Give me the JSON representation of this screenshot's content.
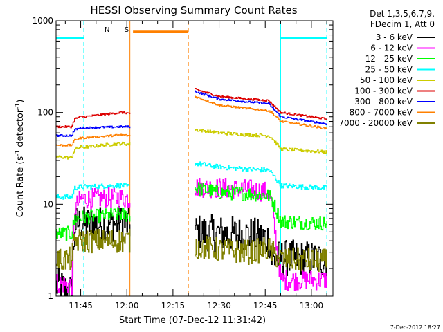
{
  "chart_data": {
    "type": "line",
    "title": "HESSI Observing Summary Count Rates",
    "xlabel": "Start Time (07-Dec-12 11:31:42)",
    "ylabel_prefix": "Count Rate (s",
    "ylabel_sup1": "-1",
    "ylabel_mid": " detector",
    "ylabel_sup2": "-1",
    "ylabel_suffix": ")",
    "yscale": "log",
    "ylim": [
      1,
      1000
    ],
    "xlim": [
      "11:37",
      "13:07"
    ],
    "y_ticks": [
      "1",
      "10",
      "100",
      "1000"
    ],
    "x_ticks": [
      "11:45",
      "12:00",
      "12:15",
      "12:30",
      "12:45",
      "13:00"
    ],
    "legend_header": [
      "Det 1,3,5,6,7,9,",
      "FDecim 1, Att 0"
    ],
    "footer_date": "7-Dec-2012 18:27",
    "flags": [
      {
        "label": "N",
        "color": "#00ffff",
        "segments": [
          [
            "11:37",
            "11:46"
          ],
          [
            "12:50",
            "13:05"
          ]
        ],
        "value": 650
      },
      {
        "label": "S",
        "color": "#ff8000",
        "segments": [
          [
            "12:02",
            "12:20"
          ]
        ],
        "value": 760
      }
    ],
    "markers": [
      {
        "time": "11:46",
        "color": "#00ffff",
        "style": "dashed"
      },
      {
        "time": "12:01",
        "color": "#ff8000",
        "style": "solid"
      },
      {
        "time": "12:20",
        "color": "#ff8000",
        "style": "dashed"
      },
      {
        "time": "12:50",
        "color": "#00ffff",
        "style": "solid"
      },
      {
        "time": "13:05",
        "color": "#00ffff",
        "style": "dashed"
      }
    ],
    "series": [
      {
        "name": "3 - 6 keV",
        "color": "#000000",
        "noise": 0.9,
        "segments": [
          {
            "x": [
              "11:37",
              "11:42",
              "11:43",
              "11:45",
              "11:46",
              "11:58",
              "12:01"
            ],
            "y": [
              1.3,
              1.1,
              6.0,
              6.3,
              6.0,
              6.2,
              6.0
            ]
          },
          {
            "x": [
              "12:22",
              "12:30",
              "12:40",
              "12:46",
              "12:47",
              "12:50",
              "13:05"
            ],
            "y": [
              5.0,
              4.8,
              4.6,
              4.2,
              2.5,
              2.6,
              2.5
            ]
          }
        ]
      },
      {
        "name": "6 - 12 keV",
        "color": "#ff00ff",
        "noise": 0.5,
        "segments": [
          {
            "x": [
              "11:37",
              "11:42",
              "11:43",
              "11:45",
              "11:46",
              "11:58",
              "12:01"
            ],
            "y": [
              1.4,
              1.3,
              9.0,
              11.5,
              11.5,
              11.8,
              11.5
            ]
          },
          {
            "x": [
              "12:22",
              "12:30",
              "12:40",
              "12:46",
              "12:47",
              "12:50",
              "13:05"
            ],
            "y": [
              15.5,
              15.0,
              14.5,
              13.5,
              10.0,
              1.5,
              1.5
            ]
          }
        ]
      },
      {
        "name": "12 - 25 keV",
        "color": "#00ff00",
        "noise": 0.35,
        "segments": [
          {
            "x": [
              "11:37",
              "11:42",
              "11:43",
              "11:45",
              "11:46",
              "11:58",
              "12:01"
            ],
            "y": [
              4.8,
              4.8,
              7.0,
              7.2,
              7.2,
              7.8,
              7.5
            ]
          },
          {
            "x": [
              "12:22",
              "12:30",
              "12:40",
              "12:46",
              "12:47",
              "12:50",
              "13:05"
            ],
            "y": [
              15.0,
              13.5,
              13.0,
              12.5,
              11.5,
              6.5,
              6.2
            ]
          }
        ]
      },
      {
        "name": "25 - 50 keV",
        "color": "#00ffff",
        "noise": 0.12,
        "segments": [
          {
            "x": [
              "11:37",
              "11:42",
              "11:43",
              "11:45",
              "11:46",
              "11:58",
              "12:01"
            ],
            "y": [
              12.0,
              12.0,
              15.0,
              15.5,
              15.5,
              16.0,
              15.5
            ]
          },
          {
            "x": [
              "12:22",
              "12:30",
              "12:40",
              "12:46",
              "12:47",
              "12:50",
              "13:05"
            ],
            "y": [
              28.0,
              25.5,
              24.0,
              23.5,
              22.0,
              16.0,
              15.0
            ]
          }
        ]
      },
      {
        "name": "50 - 100 keV",
        "color": "#cccc00",
        "noise": 0.08,
        "segments": [
          {
            "x": [
              "11:37",
              "11:42",
              "11:43",
              "11:45",
              "11:46",
              "11:58",
              "12:01"
            ],
            "y": [
              33.0,
              32.0,
              40.0,
              42.0,
              42.0,
              46.0,
              45.0
            ]
          },
          {
            "x": [
              "12:22",
              "12:30",
              "12:40",
              "12:46",
              "12:47",
              "12:50",
              "13:05"
            ],
            "y": [
              65.0,
              60.0,
              57.0,
              56.0,
              53.0,
              40.0,
              37.0
            ]
          }
        ]
      },
      {
        "name": "100 - 300 keV",
        "color": "#dd0000",
        "noise": 0.05,
        "segments": [
          {
            "x": [
              "11:37",
              "11:42",
              "11:43",
              "11:45",
              "11:46",
              "11:58",
              "12:01"
            ],
            "y": [
              70.0,
              70.0,
              85.0,
              90.0,
              90.0,
              100.0,
              98.0
            ]
          },
          {
            "x": [
              "12:22",
              "12:30",
              "12:40",
              "12:46",
              "12:47",
              "12:50",
              "13:05"
            ],
            "y": [
              180.0,
              150.0,
              140.0,
              135.0,
              125.0,
              100.0,
              85.0
            ]
          }
        ]
      },
      {
        "name": "300 - 800 keV",
        "color": "#0000ff",
        "noise": 0.05,
        "segments": [
          {
            "x": [
              "11:37",
              "11:42",
              "11:43",
              "11:45",
              "11:46",
              "11:58",
              "12:01"
            ],
            "y": [
              56.0,
              56.0,
              65.0,
              68.0,
              68.0,
              70.0,
              70.0
            ]
          },
          {
            "x": [
              "12:22",
              "12:30",
              "12:40",
              "12:46",
              "12:47",
              "12:50",
              "13:05"
            ],
            "y": [
              170.0,
              140.0,
              130.0,
              125.0,
              115.0,
              90.0,
              75.0
            ]
          }
        ]
      },
      {
        "name": "800 - 7000 keV",
        "color": "#ff8000",
        "noise": 0.05,
        "segments": [
          {
            "x": [
              "11:37",
              "11:42",
              "11:43",
              "11:45",
              "11:46",
              "11:58",
              "12:01"
            ],
            "y": [
              44.0,
              44.0,
              50.0,
              53.0,
              53.0,
              57.0,
              56.0
            ]
          },
          {
            "x": [
              "12:22",
              "12:30",
              "12:40",
              "12:46",
              "12:47",
              "12:50",
              "13:05"
            ],
            "y": [
              150.0,
              120.0,
              110.0,
              105.0,
              100.0,
              80.0,
              67.0
            ]
          }
        ]
      },
      {
        "name": "7000 - 20000 keV",
        "color": "#808000",
        "noise": 0.6,
        "segments": [
          {
            "x": [
              "11:37",
              "11:42",
              "11:43",
              "11:45",
              "11:46",
              "11:58",
              "12:01"
            ],
            "y": [
              2.5,
              2.5,
              4.0,
              4.0,
              4.0,
              4.0,
              4.0
            ]
          },
          {
            "x": [
              "12:22",
              "12:30",
              "12:40",
              "12:46",
              "12:47",
              "12:50",
              "13:05"
            ],
            "y": [
              3.5,
              3.2,
              3.0,
              3.3,
              3.0,
              2.5,
              2.4
            ]
          }
        ]
      }
    ]
  }
}
